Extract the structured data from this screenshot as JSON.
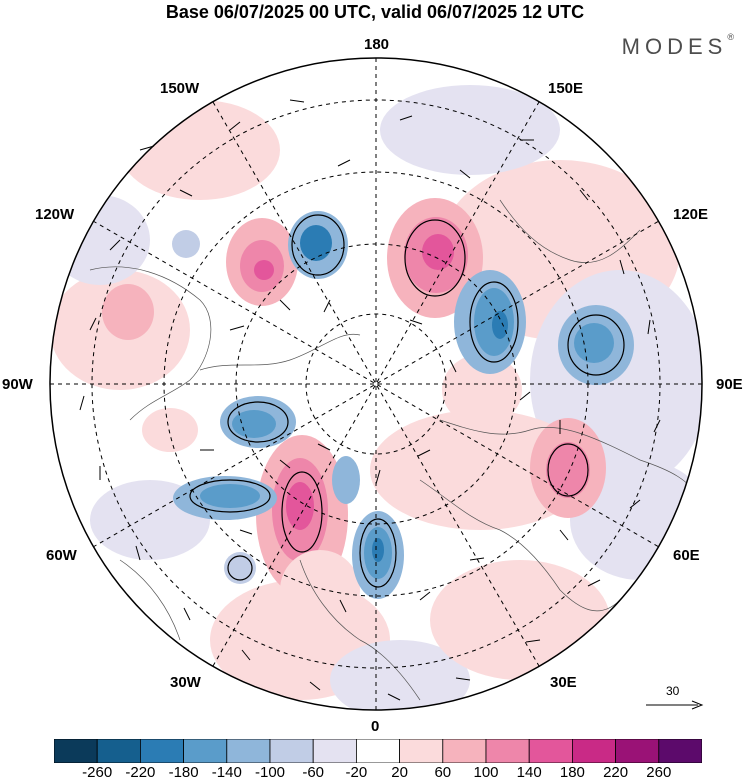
{
  "title": "Base 06/07/2025 00 UTC, valid 06/07/2025 12 UTC",
  "brand": {
    "name": "MODES",
    "mark": "®"
  },
  "map": {
    "projection": "north-polar-stereographic",
    "longitude_labels": {
      "lon_180": "180",
      "lon_150w": "150W",
      "lon_150e": "150E",
      "lon_120w": "120W",
      "lon_120e": "120E",
      "lon_90w": "90W",
      "lon_90e": "90E",
      "lon_60w": "60W",
      "lon_60e": "60E",
      "lon_30w": "30W",
      "lon_30e": "30E",
      "lon_0": "0"
    },
    "reference_vector_label": "30"
  },
  "colorbar": {
    "colors": [
      "#0b3a5a",
      "#155f8e",
      "#2b7cb4",
      "#5a9cca",
      "#8fb6da",
      "#c1cde6",
      "#e4e2f1",
      "#ffffff",
      "#fbdbdc",
      "#f6b3bd",
      "#ee86aa",
      "#e3569b",
      "#c92a86",
      "#9a1276",
      "#5c0a6b"
    ],
    "ticks": [
      "-260",
      "-220",
      "-180",
      "-140",
      "-100",
      "-60",
      "-20",
      "20",
      "60",
      "100",
      "140",
      "180",
      "220",
      "260"
    ]
  }
}
